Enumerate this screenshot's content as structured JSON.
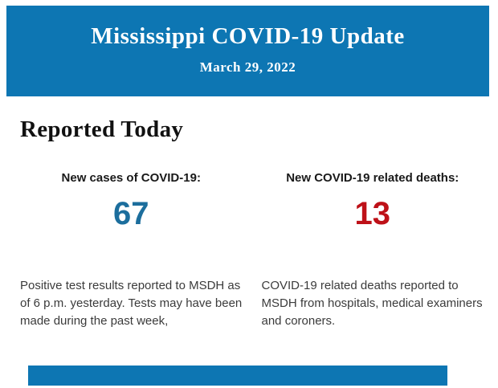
{
  "header": {
    "bg": "#0d76b3",
    "text_color": "#ffffff",
    "title": "Mississippi COVID-19 Update",
    "date": "March 29, 2022"
  },
  "section": {
    "title": "Reported Today"
  },
  "stats": [
    {
      "label": "New cases of COVID-19:",
      "value": "67",
      "value_color": "#1c6e9d",
      "description": "Positive test results reported to MSDH as of 6 p.m. yesterday. Tests may have been made during the past week,"
    },
    {
      "label": "New COVID-19 related deaths:",
      "value": "13",
      "value_color": "#be1118",
      "description": "COVID-19 related deaths reported to MSDH from hospitals, medical examiners and coroners."
    }
  ],
  "next_section": {
    "bg": "#0d76b3"
  }
}
